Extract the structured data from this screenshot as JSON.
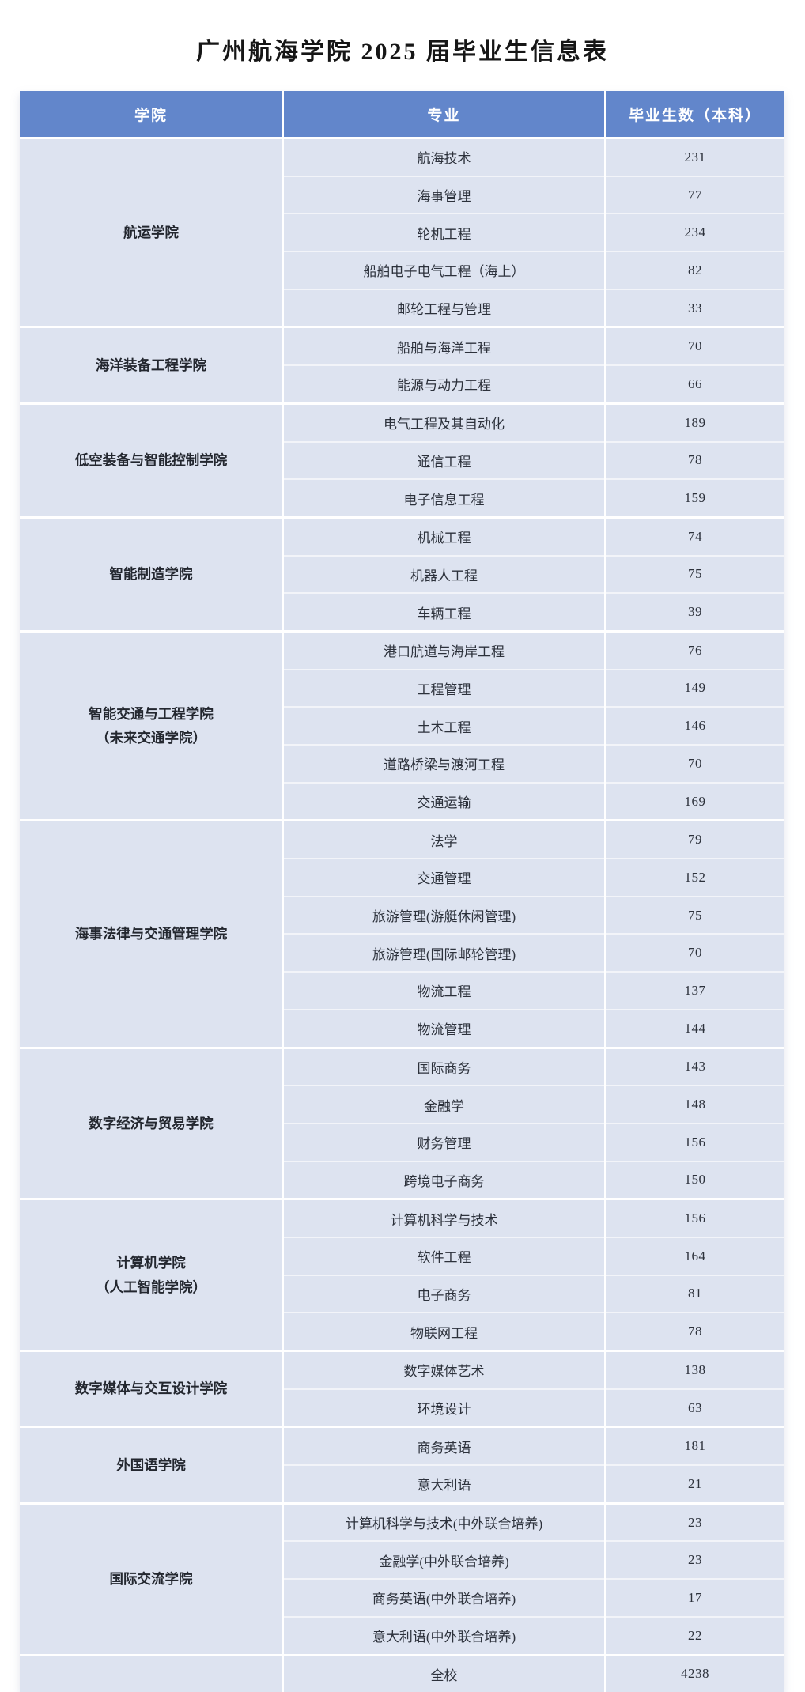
{
  "page": {
    "title": "广州航海学院 2025 届毕业生信息表"
  },
  "colors": {
    "header_bg": "#6286cb",
    "header_text": "#ffffff",
    "cell_bg": "#dde3f0",
    "body_text": "#2c313b"
  },
  "table": {
    "headers": [
      "学院",
      "专业",
      "毕业生数（本科）"
    ],
    "colleges": [
      {
        "name_lines": [
          "航运学院"
        ],
        "majors": [
          {
            "major": "航海技术",
            "count": "231"
          },
          {
            "major": "海事管理",
            "count": "77"
          },
          {
            "major": "轮机工程",
            "count": "234"
          },
          {
            "major": "船舶电子电气工程（海上）",
            "count": "82"
          },
          {
            "major": "邮轮工程与管理",
            "count": "33"
          }
        ]
      },
      {
        "name_lines": [
          "海洋装备工程学院"
        ],
        "majors": [
          {
            "major": "船舶与海洋工程",
            "count": "70"
          },
          {
            "major": "能源与动力工程",
            "count": "66"
          }
        ]
      },
      {
        "name_lines": [
          "低空装备与智能控制学院"
        ],
        "majors": [
          {
            "major": "电气工程及其自动化",
            "count": "189"
          },
          {
            "major": "通信工程",
            "count": "78"
          },
          {
            "major": "电子信息工程",
            "count": "159"
          }
        ]
      },
      {
        "name_lines": [
          "智能制造学院"
        ],
        "majors": [
          {
            "major": "机械工程",
            "count": "74"
          },
          {
            "major": "机器人工程",
            "count": "75"
          },
          {
            "major": "车辆工程",
            "count": "39"
          }
        ]
      },
      {
        "name_lines": [
          "智能交通与工程学院",
          "（未来交通学院）"
        ],
        "majors": [
          {
            "major": "港口航道与海岸工程",
            "count": "76"
          },
          {
            "major": "工程管理",
            "count": "149"
          },
          {
            "major": "土木工程",
            "count": "146"
          },
          {
            "major": "道路桥梁与渡河工程",
            "count": "70"
          },
          {
            "major": "交通运输",
            "count": "169"
          }
        ]
      },
      {
        "name_lines": [
          "海事法律与交通管理学院"
        ],
        "majors": [
          {
            "major": "法学",
            "count": "79"
          },
          {
            "major": "交通管理",
            "count": "152"
          },
          {
            "major": "旅游管理(游艇休闲管理)",
            "count": "75"
          },
          {
            "major": "旅游管理(国际邮轮管理)",
            "count": "70"
          },
          {
            "major": "物流工程",
            "count": "137"
          },
          {
            "major": "物流管理",
            "count": "144"
          }
        ]
      },
      {
        "name_lines": [
          "数字经济与贸易学院"
        ],
        "majors": [
          {
            "major": "国际商务",
            "count": "143"
          },
          {
            "major": "金融学",
            "count": "148"
          },
          {
            "major": "财务管理",
            "count": "156"
          },
          {
            "major": "跨境电子商务",
            "count": "150"
          }
        ]
      },
      {
        "name_lines": [
          "计算机学院",
          "（人工智能学院）"
        ],
        "majors": [
          {
            "major": "计算机科学与技术",
            "count": "156"
          },
          {
            "major": "软件工程",
            "count": "164"
          },
          {
            "major": "电子商务",
            "count": "81"
          },
          {
            "major": "物联网工程",
            "count": "78"
          }
        ]
      },
      {
        "name_lines": [
          "数字媒体与交互设计学院"
        ],
        "majors": [
          {
            "major": "数字媒体艺术",
            "count": "138"
          },
          {
            "major": "环境设计",
            "count": "63"
          }
        ]
      },
      {
        "name_lines": [
          "外国语学院"
        ],
        "majors": [
          {
            "major": "商务英语",
            "count": "181"
          },
          {
            "major": "意大利语",
            "count": "21"
          }
        ]
      },
      {
        "name_lines": [
          "国际交流学院"
        ],
        "majors": [
          {
            "major": "计算机科学与技术(中外联合培养)",
            "count": "23"
          },
          {
            "major": "金融学(中外联合培养)",
            "count": "23"
          },
          {
            "major": "商务英语(中外联合培养)",
            "count": "17"
          },
          {
            "major": "意大利语(中外联合培养)",
            "count": "22"
          }
        ]
      }
    ],
    "footer": {
      "college": "",
      "major": "全校",
      "count": "4238"
    }
  }
}
